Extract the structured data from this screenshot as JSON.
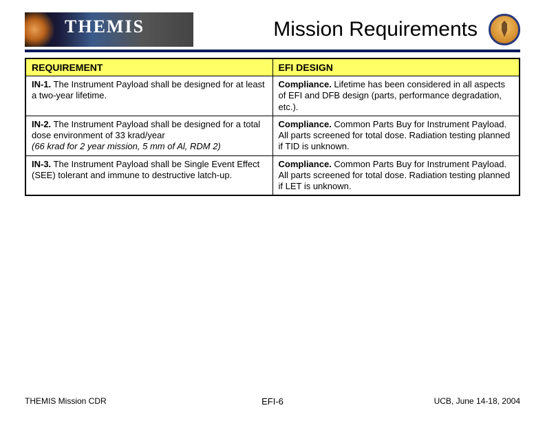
{
  "header": {
    "brand": "THEMIS",
    "title": "Mission Requirements"
  },
  "table": {
    "header_bg": "#ffff66",
    "border_color": "#000000",
    "columns": [
      "REQUIREMENT",
      "EFI DESIGN"
    ],
    "rows": [
      {
        "req_id": "IN-1.",
        "req_text": " The Instrument Payload shall be designed for at least a two-year lifetime.",
        "req_italic": "",
        "des_lead": "Compliance.",
        "des_text": " Lifetime has been considered in all aspects of EFI and DFB design (parts, performance degradation, etc.)."
      },
      {
        "req_id": "IN-2.",
        "req_text": " The Instrument Payload shall be designed for a total dose environment of 33 krad/year",
        "req_italic": "(66 krad for 2 year mission, 5 mm of Al, RDM 2)",
        "des_lead": "Compliance.",
        "des_text": " Common Parts Buy for Instrument Payload.  All parts screened for total dose.  Radiation testing planned if TID is unknown."
      },
      {
        "req_id": "IN-3.",
        "req_text": " The Instrument Payload shall be Single Event Effect (SEE) tolerant and immune to destructive latch-up.",
        "req_italic": "",
        "des_lead": "Compliance.",
        "des_text": " Common Parts Buy for Instrument Payload.  All parts screened for total dose.  Radiation testing planned if LET is unknown."
      }
    ]
  },
  "footer": {
    "left": "THEMIS Mission CDR",
    "center_prefix": "EFI-",
    "center_page": "6",
    "right": "UCB, June 14-18, 2004"
  }
}
